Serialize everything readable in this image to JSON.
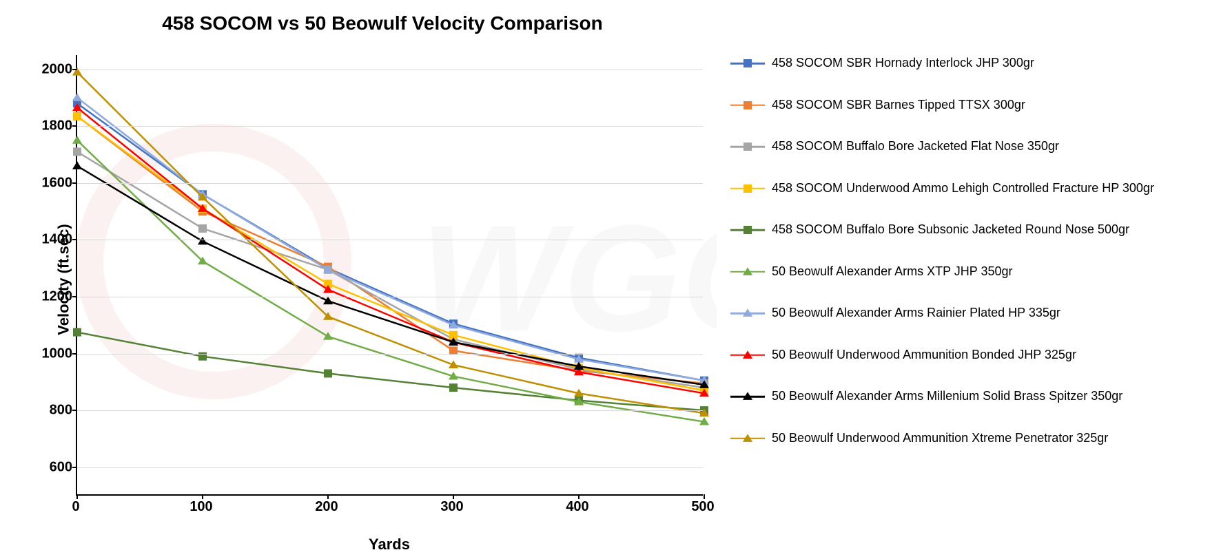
{
  "chart": {
    "type": "line",
    "title": "458 SOCOM vs 50 Beowulf Velocity Comparison",
    "title_fontsize": 28,
    "title_weight": "bold",
    "background_color": "#ffffff",
    "grid_color": "#d9d9d9",
    "axis_color": "#000000",
    "xlabel": "Yards",
    "ylabel": "Velocity (ft.sec)",
    "label_fontsize": 22,
    "label_weight": "bold",
    "tick_fontsize": 20,
    "tick_weight": "bold",
    "xlim": [
      0,
      500
    ],
    "ylim": [
      500,
      2050
    ],
    "ytick_step": 200,
    "yticks": [
      600,
      800,
      1000,
      1200,
      1400,
      1600,
      1800,
      2000
    ],
    "xticks": [
      0,
      100,
      200,
      300,
      400,
      500
    ],
    "x_values": [
      0,
      100,
      200,
      300,
      400,
      500
    ],
    "line_width": 2.5,
    "marker_size": 12,
    "series": [
      {
        "name": "458 SOCOM SBR Hornady Interlock JHP 300gr",
        "color": "#4472c4",
        "marker": "square",
        "values": [
          1880,
          1560,
          1300,
          1105,
          985,
          905
        ]
      },
      {
        "name": "458 SOCOM SBR Barnes Tipped TTSX 300gr",
        "color": "#ed7d31",
        "marker": "square",
        "values": [
          1835,
          1500,
          1305,
          1010,
          940,
          895
        ]
      },
      {
        "name": "458 SOCOM Buffalo Bore Jacketed Flat Nose 350gr",
        "color": "#a5a5a5",
        "marker": "square",
        "values": [
          1710,
          1440,
          1295,
          1050,
          945,
          880
        ]
      },
      {
        "name": "458 SOCOM Underwood Ammo Lehigh Controlled Fracture HP 300gr",
        "color": "#ffc000",
        "marker": "square",
        "values": [
          1835,
          1510,
          1245,
          1065,
          950,
          870
        ]
      },
      {
        "name": "458 SOCOM Buffalo Bore Subsonic Jacketed Round Nose 500gr",
        "color": "#548235",
        "marker": "square",
        "values": [
          1075,
          990,
          930,
          880,
          835,
          800
        ]
      },
      {
        "name": "50 Beowulf Alexander Arms XTP JHP 350gr",
        "color": "#70ad47",
        "marker": "triangle",
        "values": [
          1750,
          1325,
          1060,
          920,
          830,
          760
        ]
      },
      {
        "name": "50 Beowulf Alexander Arms Rainier Plated HP 335gr",
        "color": "#8faadc",
        "marker": "triangle",
        "values": [
          1900,
          1560,
          1295,
          1100,
          980,
          905
        ]
      },
      {
        "name": "50 Beowulf Underwood Ammunition Bonded JHP 325gr",
        "color": "#ff0000",
        "marker": "triangle",
        "values": [
          1865,
          1510,
          1225,
          1040,
          935,
          860
        ]
      },
      {
        "name": "50 Beowulf Alexander Arms Millenium Solid Brass Spitzer 350gr",
        "color": "#000000",
        "marker": "triangle",
        "values": [
          1660,
          1395,
          1185,
          1040,
          955,
          890
        ]
      },
      {
        "name": "50 Beowulf Underwood Ammunition Xtreme Penetrator 325gr",
        "color": "#bf8f00",
        "marker": "triangle",
        "values": [
          1990,
          1550,
          1130,
          960,
          860,
          790
        ]
      }
    ]
  },
  "watermark_text": "WGGUN",
  "watermark_opacity": 0.05
}
